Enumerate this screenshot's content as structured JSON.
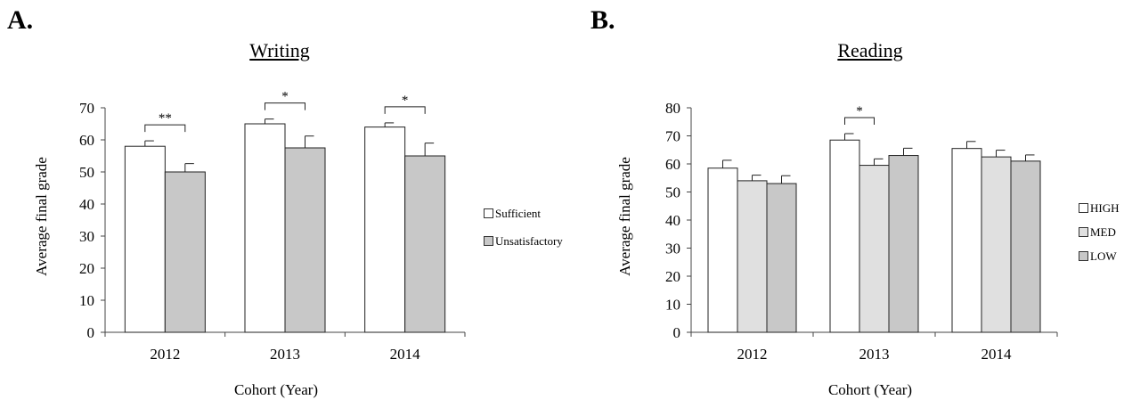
{
  "panels": {
    "a": {
      "letter": "A.",
      "title": "Writing"
    },
    "b": {
      "letter": "B.",
      "title": "Reading"
    }
  },
  "colors": {
    "white_bar": "#ffffff",
    "light_gray_bar": "#e0e0e0",
    "gray_bar": "#c8c8c8",
    "axis": "#444444"
  },
  "chart_data": [
    {
      "type": "bar",
      "title": "Writing",
      "xlabel": "Cohort (Year)",
      "ylabel": "Average final grade",
      "categories": [
        "2012",
        "2013",
        "2014"
      ],
      "ylim": [
        0,
        70
      ],
      "yticks": [
        0,
        10,
        20,
        30,
        40,
        50,
        60,
        70
      ],
      "legend_position": "right",
      "series": [
        {
          "name": "Sufficient",
          "values": [
            58,
            65,
            64
          ],
          "errors": [
            1.7,
            1.5,
            1.3
          ],
          "color": "#ffffff"
        },
        {
          "name": "Unsatisfactory",
          "values": [
            50,
            57.5,
            55
          ],
          "errors": [
            2.6,
            3.7,
            4.0
          ],
          "color": "#c8c8c8"
        }
      ],
      "significance": [
        {
          "category": "2012",
          "label": "**"
        },
        {
          "category": "2013",
          "label": "*"
        },
        {
          "category": "2014",
          "label": "*"
        }
      ]
    },
    {
      "type": "bar",
      "title": "Reading",
      "xlabel": "Cohort (Year)",
      "ylabel": "Average final grade",
      "categories": [
        "2012",
        "2013",
        "2014"
      ],
      "ylim": [
        0,
        80
      ],
      "yticks": [
        0,
        10,
        20,
        30,
        40,
        50,
        60,
        70,
        80
      ],
      "legend_position": "right",
      "series": [
        {
          "name": "HIGH",
          "values": [
            58.5,
            68.5,
            65.5
          ],
          "errors": [
            2.8,
            2.3,
            2.5
          ],
          "color": "#ffffff"
        },
        {
          "name": "MED",
          "values": [
            54,
            59.5,
            62.5
          ],
          "errors": [
            2.0,
            2.3,
            2.4
          ],
          "color": "#e0e0e0"
        },
        {
          "name": "LOW",
          "values": [
            53,
            63,
            61
          ],
          "errors": [
            2.8,
            2.6,
            2.2
          ],
          "color": "#c8c8c8"
        }
      ],
      "significance": [
        {
          "category": "2013",
          "label": "*"
        }
      ]
    }
  ]
}
